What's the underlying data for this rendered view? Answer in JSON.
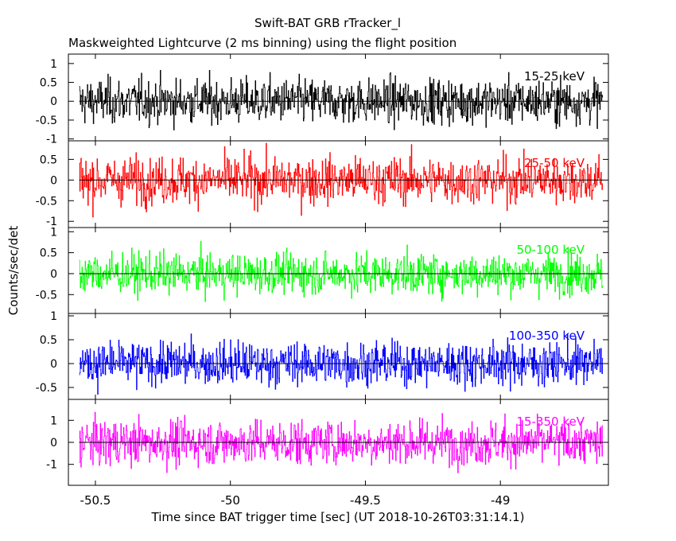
{
  "title": "Swift-BAT GRB rTracker_l",
  "subtitle": "Maskweighted Lightcurve (2 ms binning) using the flight position",
  "chart_data": {
    "type": "line",
    "xlabel": "Time since BAT trigger time [sec] (UT 2018-10-26T03:31:14.1)",
    "ylabel": "Counts/sec/det",
    "xlim": [
      -50.6,
      -48.6
    ],
    "x_ticks": [
      -50.5,
      -50,
      -49.5,
      -49
    ],
    "x_tick_labels": [
      "-50.5",
      "-50",
      "-49.5",
      "-49"
    ],
    "x_start": -50.56,
    "x_end": -48.62,
    "bin_seconds": 0.002,
    "panels": [
      {
        "name": "15-25 keV",
        "color": "#000000",
        "ylim": [
          -1.05,
          1.25
        ],
        "ticks": [
          -1,
          -0.5,
          0,
          0.5,
          1
        ],
        "tick_labels": [
          "-1",
          "-0.5",
          "0",
          "0.5",
          "1"
        ],
        "amplitude": 0.42
      },
      {
        "name": "25-50 keV",
        "color": "#ff0000",
        "ylim": [
          -1.15,
          0.95
        ],
        "ticks": [
          -1,
          -0.5,
          0,
          0.5
        ],
        "tick_labels": [
          "-1",
          "-0.5",
          "0",
          "0.5"
        ],
        "amplitude": 0.4
      },
      {
        "name": "50-100 keV",
        "color": "#00ff00",
        "ylim": [
          -0.95,
          1.1
        ],
        "ticks": [
          -0.5,
          0,
          0.5,
          1
        ],
        "tick_labels": [
          "-0.5",
          "0",
          "0.5",
          "1"
        ],
        "amplitude": 0.34
      },
      {
        "name": "100-350 keV",
        "color": "#0000ff",
        "ylim": [
          -0.75,
          1.05
        ],
        "ticks": [
          -0.5,
          0,
          0.5,
          1
        ],
        "tick_labels": [
          "-0.5",
          "0",
          "0.5",
          "1"
        ],
        "amplitude": 0.32
      },
      {
        "name": "15-350 keV",
        "color": "#ff00ff",
        "ylim": [
          -1.95,
          1.95
        ],
        "ticks": [
          -1,
          0,
          1
        ],
        "tick_labels": [
          "-1",
          "0",
          "1"
        ],
        "amplitude": 0.72
      }
    ]
  }
}
